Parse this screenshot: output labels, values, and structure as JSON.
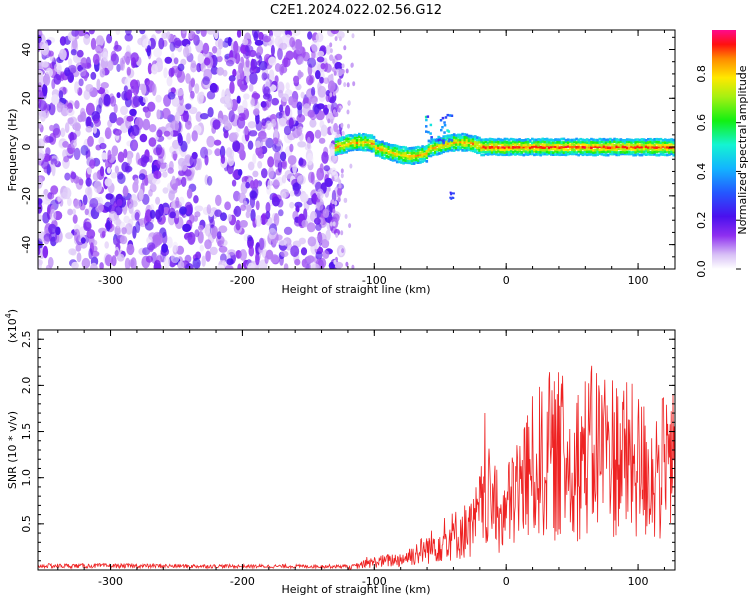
{
  "title": "C2E1.2024.022.02.56.G12",
  "chart_data": [
    {
      "type": "heatmap",
      "xlabel": "Height of straight line (km)",
      "ylabel": "Frequency (Hz)",
      "xlim": [
        -355,
        128
      ],
      "ylim": [
        -50,
        48
      ],
      "xticks": [
        -300,
        -200,
        -100,
        0,
        100
      ],
      "yticks": [
        -40,
        -20,
        0,
        20,
        40
      ],
      "colorbar": {
        "label": "Normalized spectral amplitude",
        "range": [
          0,
          0.98
        ],
        "ticks": [
          "0.0",
          "0.2",
          "0.4",
          "0.6",
          "0.8"
        ],
        "colormap": "rainbow (white → purple → blue → cyan → green → yellow → red → magenta)"
      },
      "features": {
        "noise_region_x": [
          -355,
          -125
        ],
        "noise_amplitude": [
          0.0,
          0.15
        ],
        "signal_band_x": [
          -130,
          128
        ],
        "signal_band_freq_hz": 0,
        "signal_band_amplitude": [
          0.5,
          0.95
        ]
      }
    },
    {
      "type": "line",
      "xlabel": "Height of straight line (km)",
      "ylabel": "SNR (10 * v/v)",
      "yscale_label": "(x10",
      "yscale_exp": "4",
      "xlim": [
        -355,
        128
      ],
      "ylim": [
        0,
        26000
      ],
      "xticks": [
        -300,
        -200,
        -100,
        0,
        100
      ],
      "yticks": [
        5000,
        10000,
        15000,
        20000,
        25000
      ],
      "yticklabels": [
        "0.5",
        "1.0",
        "1.5",
        "2.0",
        "2.5"
      ],
      "series": [
        {
          "color": "#ee2222",
          "envelope_x": [
            -355,
            -300,
            -200,
            -120,
            -100,
            -80,
            -60,
            -40,
            -25,
            -15,
            -5,
            0,
            10,
            20,
            30,
            50,
            70,
            90,
            110,
            128
          ],
          "envelope_y": [
            500,
            500,
            400,
            400,
            1500,
            2000,
            4000,
            6500,
            8000,
            14000,
            10000,
            11000,
            16000,
            19000,
            21000,
            20000,
            23000,
            21000,
            18000,
            20000
          ]
        }
      ]
    }
  ]
}
